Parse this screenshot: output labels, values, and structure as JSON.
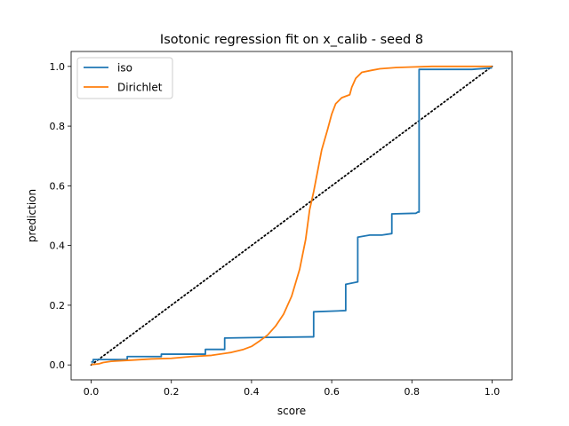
{
  "chart_data": {
    "type": "line",
    "title": "Isotonic regression fit on x_calib - seed 8",
    "xlabel": "score",
    "ylabel": "prediction",
    "xlim": [
      -0.05,
      1.05
    ],
    "ylim": [
      -0.05,
      1.05
    ],
    "x_ticks": [
      "0.0",
      "0.2",
      "0.4",
      "0.6",
      "0.8",
      "1.0"
    ],
    "y_ticks": [
      "0.0",
      "0.2",
      "0.4",
      "0.6",
      "0.8",
      "1.0"
    ],
    "grid": false,
    "legend_position": "upper-left",
    "colors": {
      "iso": "#1f77b4",
      "dirichlet": "#ff7f0e",
      "reference": "#000000"
    },
    "series": [
      {
        "name": "iso",
        "style": "steps",
        "points": [
          [
            0.0,
            0.01
          ],
          [
            0.005,
            0.01
          ],
          [
            0.005,
            0.018
          ],
          [
            0.09,
            0.018
          ],
          [
            0.09,
            0.028
          ],
          [
            0.175,
            0.028
          ],
          [
            0.175,
            0.036
          ],
          [
            0.285,
            0.036
          ],
          [
            0.285,
            0.052
          ],
          [
            0.333,
            0.052
          ],
          [
            0.333,
            0.09
          ],
          [
            0.42,
            0.092
          ],
          [
            0.55,
            0.094
          ],
          [
            0.555,
            0.094
          ],
          [
            0.555,
            0.178
          ],
          [
            0.635,
            0.182
          ],
          [
            0.635,
            0.27
          ],
          [
            0.665,
            0.278
          ],
          [
            0.665,
            0.428
          ],
          [
            0.695,
            0.435
          ],
          [
            0.725,
            0.435
          ],
          [
            0.75,
            0.44
          ],
          [
            0.75,
            0.506
          ],
          [
            0.81,
            0.508
          ],
          [
            0.815,
            0.512
          ],
          [
            0.818,
            0.512
          ],
          [
            0.818,
            0.99
          ],
          [
            0.95,
            0.99
          ],
          [
            1.0,
            0.995
          ]
        ]
      },
      {
        "name": "Dirichlet",
        "style": "line",
        "points": [
          [
            0.0,
            0.001
          ],
          [
            0.02,
            0.004
          ],
          [
            0.03,
            0.008
          ],
          [
            0.05,
            0.012
          ],
          [
            0.1,
            0.016
          ],
          [
            0.15,
            0.02
          ],
          [
            0.2,
            0.022
          ],
          [
            0.25,
            0.028
          ],
          [
            0.3,
            0.032
          ],
          [
            0.35,
            0.042
          ],
          [
            0.38,
            0.052
          ],
          [
            0.4,
            0.062
          ],
          [
            0.42,
            0.08
          ],
          [
            0.44,
            0.1
          ],
          [
            0.46,
            0.13
          ],
          [
            0.48,
            0.17
          ],
          [
            0.5,
            0.23
          ],
          [
            0.52,
            0.32
          ],
          [
            0.535,
            0.42
          ],
          [
            0.545,
            0.52
          ],
          [
            0.555,
            0.58
          ],
          [
            0.565,
            0.65
          ],
          [
            0.575,
            0.72
          ],
          [
            0.59,
            0.79
          ],
          [
            0.6,
            0.84
          ],
          [
            0.61,
            0.875
          ],
          [
            0.625,
            0.895
          ],
          [
            0.645,
            0.905
          ],
          [
            0.65,
            0.93
          ],
          [
            0.66,
            0.96
          ],
          [
            0.675,
            0.98
          ],
          [
            0.7,
            0.987
          ],
          [
            0.72,
            0.992
          ],
          [
            0.76,
            0.996
          ],
          [
            0.8,
            0.998
          ],
          [
            0.85,
            1.0
          ],
          [
            1.0,
            1.0
          ]
        ]
      }
    ],
    "reference_line": {
      "style": "dotted",
      "points": [
        [
          0.0,
          0.0
        ],
        [
          1.0,
          1.0
        ]
      ]
    },
    "legend": [
      "iso",
      "Dirichlet"
    ]
  }
}
